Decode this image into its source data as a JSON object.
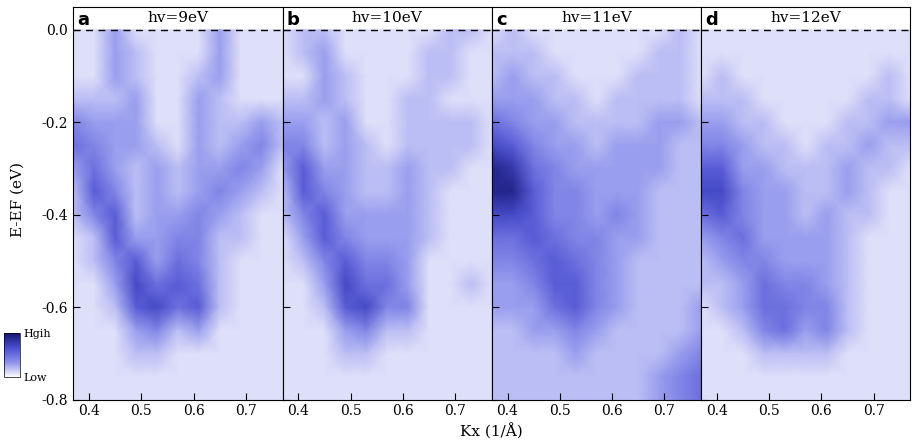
{
  "xlabel": "Kx (1/Å)",
  "ylabel": "E-EF (eV)",
  "colorbar": {
    "range": [
      0,
      10
    ],
    "ticks": [
      {
        "value": 0,
        "label": "Low"
      },
      {
        "value": 10,
        "label": "Hgih"
      }
    ]
  },
  "chart_data": [
    {
      "type": "heatmap",
      "label": "a",
      "title": "hv=9eV",
      "x": [
        0.37,
        0.41,
        0.45,
        0.49,
        0.53,
        0.57,
        0.61,
        0.65,
        0.69,
        0.73,
        0.77
      ],
      "y": [
        0.0,
        -0.05,
        -0.1,
        -0.15,
        -0.2,
        -0.25,
        -0.3,
        -0.35,
        -0.4,
        -0.45,
        -0.5,
        -0.55,
        -0.6,
        -0.65,
        -0.7,
        -0.75,
        -0.8
      ],
      "values": [
        [
          1,
          1,
          3,
          1,
          1,
          1,
          1,
          3,
          1,
          1,
          1
        ],
        [
          1,
          1,
          3,
          2,
          1,
          1,
          1,
          3,
          1,
          1,
          1
        ],
        [
          1,
          1,
          3,
          2,
          1,
          1,
          2,
          3,
          1,
          1,
          1
        ],
        [
          2,
          2,
          2,
          3,
          1,
          1,
          3,
          2,
          1,
          1,
          1
        ],
        [
          4,
          3,
          3,
          3,
          1,
          1,
          3,
          2,
          2,
          3,
          2
        ],
        [
          5,
          4,
          3,
          3,
          2,
          1,
          3,
          2,
          3,
          4,
          2
        ],
        [
          3,
          5,
          3,
          2,
          3,
          2,
          3,
          3,
          4,
          3,
          1
        ],
        [
          2,
          6,
          4,
          2,
          3,
          2,
          3,
          4,
          3,
          2,
          1
        ],
        [
          2,
          4,
          6,
          2,
          3,
          3,
          4,
          3,
          2,
          1,
          1
        ],
        [
          1,
          2,
          6,
          3,
          3,
          4,
          4,
          2,
          2,
          1,
          1
        ],
        [
          1,
          2,
          4,
          6,
          3,
          5,
          4,
          2,
          1,
          1,
          1
        ],
        [
          1,
          1,
          3,
          7,
          5,
          6,
          5,
          2,
          1,
          1,
          1
        ],
        [
          1,
          1,
          2,
          6,
          7,
          5,
          6,
          2,
          1,
          1,
          1
        ],
        [
          1,
          1,
          1,
          3,
          4,
          2,
          3,
          1,
          1,
          1,
          1
        ],
        [
          1,
          1,
          1,
          2,
          2,
          1,
          1,
          1,
          1,
          1,
          1
        ],
        [
          1,
          1,
          1,
          1,
          1,
          1,
          1,
          1,
          1,
          1,
          1
        ],
        [
          1,
          1,
          1,
          1,
          1,
          1,
          1,
          1,
          1,
          1,
          1
        ]
      ],
      "xlim": [
        0.37,
        0.77
      ],
      "ylim": [
        -0.8,
        0.05
      ],
      "xticks": [
        0.4,
        0.5,
        0.6,
        0.7
      ],
      "yticks": [
        -0.8,
        -0.6,
        -0.4,
        -0.2,
        0.0
      ],
      "fermi_level": 0.0
    },
    {
      "type": "heatmap",
      "label": "b",
      "title": "hv=10eV",
      "tick_labels": "x",
      "x": [
        0.37,
        0.41,
        0.45,
        0.49,
        0.53,
        0.57,
        0.61,
        0.65,
        0.69,
        0.73,
        0.77
      ],
      "y": [
        0.0,
        -0.05,
        -0.1,
        -0.15,
        -0.2,
        -0.25,
        -0.3,
        -0.35,
        -0.4,
        -0.45,
        -0.5,
        -0.55,
        -0.6,
        -0.65,
        -0.7,
        -0.75,
        -0.8
      ],
      "values": [
        [
          1,
          2,
          2,
          1,
          1,
          1,
          1,
          1,
          2,
          2,
          1
        ],
        [
          1,
          2,
          3,
          1,
          1,
          1,
          1,
          2,
          2,
          1,
          1
        ],
        [
          1,
          1,
          3,
          2,
          1,
          1,
          1,
          2,
          2,
          1,
          1
        ],
        [
          2,
          2,
          3,
          2,
          1,
          1,
          2,
          2,
          1,
          1,
          1
        ],
        [
          3,
          3,
          2,
          3,
          1,
          1,
          2,
          2,
          2,
          2,
          1
        ],
        [
          4,
          4,
          2,
          3,
          2,
          1,
          2,
          2,
          2,
          2,
          1
        ],
        [
          3,
          6,
          3,
          3,
          2,
          2,
          3,
          2,
          2,
          1,
          1
        ],
        [
          2,
          6,
          4,
          3,
          2,
          2,
          3,
          2,
          1,
          1,
          1
        ],
        [
          2,
          4,
          6,
          3,
          3,
          3,
          3,
          2,
          1,
          1,
          1
        ],
        [
          1,
          3,
          6,
          4,
          3,
          3,
          3,
          2,
          1,
          1,
          1
        ],
        [
          1,
          2,
          4,
          6,
          4,
          4,
          3,
          1,
          1,
          1,
          1
        ],
        [
          1,
          1,
          3,
          7,
          5,
          5,
          3,
          1,
          1,
          2,
          1
        ],
        [
          1,
          1,
          2,
          6,
          7,
          4,
          4,
          1,
          1,
          1,
          1
        ],
        [
          1,
          1,
          1,
          3,
          4,
          2,
          2,
          1,
          1,
          1,
          1
        ],
        [
          1,
          1,
          1,
          2,
          2,
          1,
          1,
          1,
          1,
          1,
          1
        ],
        [
          1,
          1,
          1,
          1,
          1,
          1,
          1,
          1,
          1,
          1,
          1
        ],
        [
          1,
          1,
          1,
          1,
          1,
          1,
          1,
          1,
          1,
          1,
          1
        ]
      ],
      "xlim": [
        0.37,
        0.77
      ],
      "ylim": [
        -0.8,
        0.05
      ],
      "xticks": [
        0.4,
        0.5,
        0.6,
        0.7
      ],
      "yticks": [
        -0.8,
        -0.6,
        -0.4,
        -0.2,
        0.0
      ],
      "fermi_level": 0.0
    },
    {
      "type": "heatmap",
      "label": "c",
      "title": "hv=11eV",
      "tick_labels": "x",
      "x": [
        0.37,
        0.41,
        0.45,
        0.49,
        0.53,
        0.57,
        0.61,
        0.65,
        0.69,
        0.73,
        0.77
      ],
      "y": [
        0.0,
        -0.05,
        -0.1,
        -0.15,
        -0.2,
        -0.25,
        -0.3,
        -0.35,
        -0.4,
        -0.45,
        -0.5,
        -0.55,
        -0.6,
        -0.65,
        -0.7,
        -0.75,
        -0.8
      ],
      "values": [
        [
          1,
          2,
          1,
          1,
          1,
          1,
          1,
          1,
          1,
          2,
          1
        ],
        [
          2,
          2,
          2,
          1,
          1,
          1,
          1,
          1,
          2,
          2,
          1
        ],
        [
          2,
          3,
          2,
          2,
          1,
          1,
          1,
          2,
          2,
          2,
          1
        ],
        [
          3,
          3,
          3,
          2,
          2,
          1,
          2,
          2,
          2,
          2,
          1
        ],
        [
          5,
          4,
          3,
          3,
          2,
          2,
          2,
          2,
          3,
          3,
          2
        ],
        [
          7,
          6,
          4,
          3,
          3,
          2,
          3,
          3,
          3,
          2,
          2
        ],
        [
          9,
          8,
          5,
          4,
          3,
          3,
          3,
          3,
          3,
          2,
          2
        ],
        [
          9,
          9,
          6,
          4,
          4,
          3,
          3,
          3,
          2,
          2,
          2
        ],
        [
          7,
          7,
          6,
          4,
          4,
          3,
          4,
          3,
          2,
          2,
          2
        ],
        [
          5,
          5,
          6,
          5,
          4,
          4,
          3,
          3,
          2,
          2,
          2
        ],
        [
          4,
          4,
          5,
          6,
          5,
          4,
          3,
          2,
          2,
          2,
          2
        ],
        [
          3,
          3,
          4,
          6,
          6,
          4,
          3,
          2,
          2,
          2,
          2
        ],
        [
          3,
          3,
          3,
          5,
          6,
          4,
          3,
          2,
          2,
          2,
          3
        ],
        [
          2,
          2,
          3,
          3,
          4,
          3,
          2,
          2,
          2,
          2,
          3
        ],
        [
          2,
          2,
          2,
          2,
          3,
          2,
          2,
          2,
          2,
          3,
          4
        ],
        [
          2,
          2,
          2,
          2,
          2,
          2,
          2,
          2,
          3,
          4,
          5
        ],
        [
          2,
          2,
          2,
          2,
          2,
          2,
          2,
          2,
          3,
          4,
          5
        ]
      ],
      "xlim": [
        0.37,
        0.77
      ],
      "ylim": [
        -0.8,
        0.05
      ],
      "xticks": [
        0.4,
        0.5,
        0.6,
        0.7
      ],
      "yticks": [
        -0.8,
        -0.6,
        -0.4,
        -0.2,
        0.0
      ],
      "fermi_level": 0.0
    },
    {
      "type": "heatmap",
      "label": "d",
      "title": "hv=12eV",
      "tick_labels": "x",
      "x": [
        0.37,
        0.41,
        0.45,
        0.49,
        0.53,
        0.57,
        0.61,
        0.65,
        0.69,
        0.73,
        0.77
      ],
      "y": [
        0.0,
        -0.05,
        -0.1,
        -0.15,
        -0.2,
        -0.25,
        -0.3,
        -0.35,
        -0.4,
        -0.45,
        -0.5,
        -0.55,
        -0.6,
        -0.65,
        -0.7,
        -0.75,
        -0.8
      ],
      "values": [
        [
          1,
          1,
          1,
          1,
          1,
          1,
          1,
          1,
          1,
          1,
          1
        ],
        [
          1,
          1,
          1,
          1,
          1,
          1,
          1,
          1,
          1,
          1,
          1
        ],
        [
          1,
          2,
          1,
          1,
          1,
          1,
          1,
          1,
          1,
          2,
          1
        ],
        [
          2,
          2,
          2,
          1,
          1,
          1,
          1,
          1,
          2,
          2,
          1
        ],
        [
          3,
          3,
          2,
          2,
          1,
          1,
          1,
          2,
          2,
          3,
          3
        ],
        [
          4,
          4,
          3,
          2,
          2,
          1,
          2,
          2,
          3,
          2,
          2
        ],
        [
          6,
          6,
          3,
          3,
          2,
          2,
          2,
          3,
          2,
          2,
          1
        ],
        [
          7,
          7,
          4,
          3,
          3,
          2,
          2,
          3,
          2,
          1,
          1
        ],
        [
          5,
          6,
          4,
          3,
          3,
          2,
          3,
          2,
          2,
          1,
          1
        ],
        [
          3,
          4,
          5,
          3,
          3,
          3,
          3,
          2,
          1,
          1,
          1
        ],
        [
          2,
          3,
          4,
          4,
          3,
          3,
          3,
          2,
          1,
          1,
          1
        ],
        [
          2,
          2,
          3,
          5,
          4,
          4,
          3,
          2,
          1,
          1,
          1
        ],
        [
          1,
          2,
          3,
          5,
          5,
          4,
          4,
          2,
          1,
          1,
          1
        ],
        [
          1,
          1,
          2,
          4,
          5,
          3,
          4,
          2,
          1,
          1,
          1
        ],
        [
          1,
          1,
          1,
          2,
          2,
          2,
          2,
          1,
          1,
          1,
          1
        ],
        [
          1,
          1,
          1,
          1,
          1,
          1,
          1,
          1,
          1,
          1,
          1
        ],
        [
          1,
          1,
          1,
          1,
          1,
          1,
          1,
          1,
          1,
          1,
          1
        ]
      ],
      "xlim": [
        0.37,
        0.77
      ],
      "ylim": [
        -0.8,
        0.05
      ],
      "xticks": [
        0.4,
        0.5,
        0.6,
        0.7
      ],
      "yticks": [
        -0.8,
        -0.6,
        -0.4,
        -0.2,
        0.0
      ],
      "fermi_level": 0.0
    }
  ]
}
